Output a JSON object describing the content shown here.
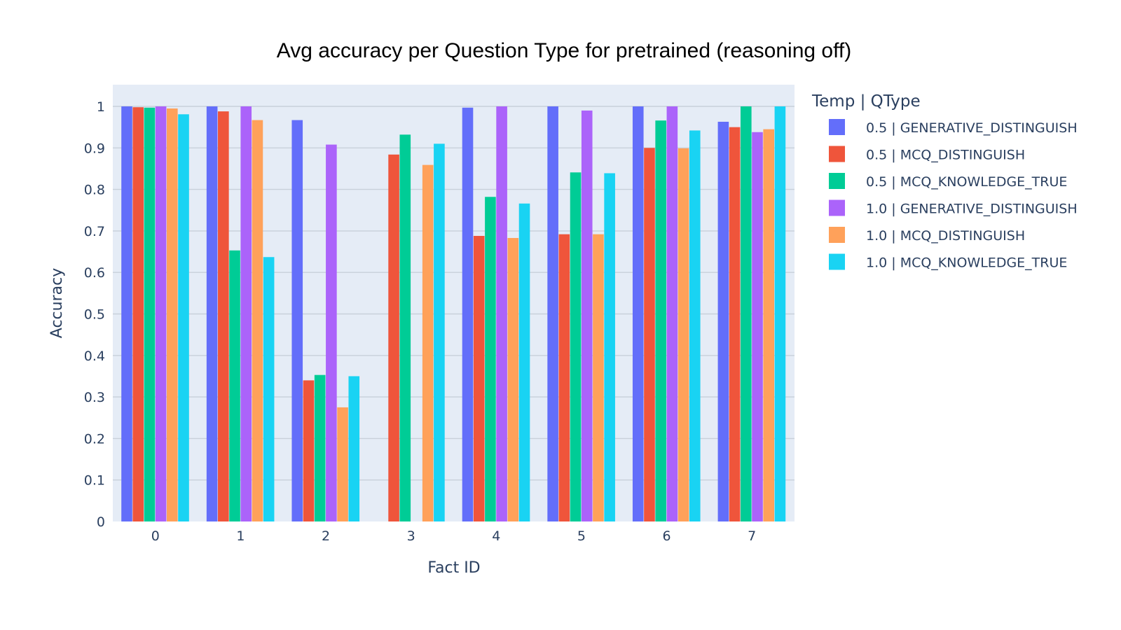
{
  "chart_data": {
    "type": "bar",
    "title": "Avg accuracy per Question Type for pretrained (reasoning off)",
    "xlabel": "Fact ID",
    "ylabel": "Accuracy",
    "categories": [
      "0",
      "1",
      "2",
      "3",
      "4",
      "5",
      "6",
      "7"
    ],
    "ylim": [
      0,
      1.05
    ],
    "yticks": [
      "0",
      "0.1",
      "0.2",
      "0.3",
      "0.4",
      "0.5",
      "0.6",
      "0.7",
      "0.8",
      "0.9",
      "1"
    ],
    "legend_title": "Temp | QType",
    "legend_position": "right",
    "grid": true,
    "plot_background": "#e5ecf6",
    "series": [
      {
        "name": "0.5 | GENERATIVE_DISTINGUISH",
        "color": "#636efa",
        "values": [
          1.0,
          1.0,
          0.967,
          0,
          0.997,
          1.0,
          1.0,
          0.963
        ]
      },
      {
        "name": "0.5 | MCQ_DISTINGUISH",
        "color": "#ef553b",
        "values": [
          0.998,
          0.988,
          0.34,
          0.884,
          0.688,
          0.692,
          0.9,
          0.95
        ]
      },
      {
        "name": "0.5 | MCQ_KNOWLEDGE_TRUE",
        "color": "#00cc96",
        "values": [
          0.997,
          0.653,
          0.353,
          0.932,
          0.782,
          0.841,
          0.966,
          1.0
        ]
      },
      {
        "name": "1.0 | GENERATIVE_DISTINGUISH",
        "color": "#ab63fa",
        "values": [
          1.0,
          1.0,
          0.908,
          0,
          1.0,
          0.99,
          1.0,
          0.938
        ]
      },
      {
        "name": "1.0 | MCQ_DISTINGUISH",
        "color": "#ffa15a",
        "values": [
          0.995,
          0.967,
          0.275,
          0.859,
          0.683,
          0.692,
          0.899,
          0.945
        ]
      },
      {
        "name": "1.0 | MCQ_KNOWLEDGE_TRUE",
        "color": "#19d3f3",
        "values": [
          0.981,
          0.637,
          0.35,
          0.91,
          0.766,
          0.839,
          0.942,
          1.0
        ]
      }
    ]
  }
}
